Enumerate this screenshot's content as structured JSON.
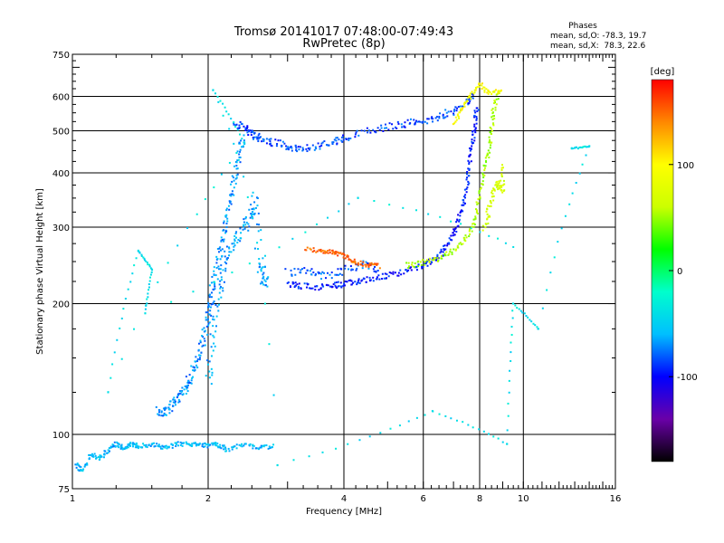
{
  "chart_data": {
    "type": "scatter",
    "title": "Tromsø 20141017 07:48:00-07:49:43",
    "subtitle": "RwPretec (8p)",
    "xlabel": "Frequency [MHz]",
    "ylabel": "Stationary phase Virtual Height [km]",
    "x_scale": "log",
    "y_scale": "log",
    "xlim": [
      1,
      16
    ],
    "ylim": [
      75,
      750
    ],
    "x_ticks": [
      1,
      2,
      4,
      6,
      8,
      10,
      16
    ],
    "y_ticks": [
      75,
      100,
      200,
      300,
      400,
      500,
      600,
      750
    ],
    "x_grid": [
      2,
      4,
      6,
      8,
      10
    ],
    "y_grid": [
      100,
      200,
      300,
      400,
      500,
      600
    ],
    "grid": true,
    "stats": {
      "heading": "Phases",
      "line_o": "mean, sd,O: -78.3, 19.7",
      "line_x": "mean, sd,X:  78.3, 22.6"
    },
    "colorbar": {
      "label": "[deg]",
      "range": [
        -180,
        180
      ],
      "ticks": [
        100,
        0,
        -100
      ],
      "colormap": [
        "#000000",
        "#6a00a8",
        "#0000ff",
        "#00bfff",
        "#00ffcc",
        "#00ff00",
        "#ccff00",
        "#ffff00",
        "#ff8800",
        "#ff0000"
      ]
    },
    "series": [
      {
        "points": [
          [
            1.02,
            85
          ],
          [
            1.05,
            82
          ],
          [
            1.1,
            90
          ],
          [
            1.15,
            88
          ],
          [
            1.2,
            92
          ],
          [
            1.25,
            95
          ],
          [
            1.3,
            93
          ],
          [
            1.35,
            95
          ],
          [
            1.4,
            94
          ],
          [
            1.5,
            95
          ],
          [
            1.6,
            93
          ],
          [
            1.7,
            95
          ],
          [
            1.8,
            95
          ],
          [
            1.9,
            95
          ],
          [
            2.0,
            94
          ],
          [
            2.1,
            95
          ],
          [
            2.2,
            92
          ],
          [
            2.4,
            95
          ],
          [
            2.6,
            93
          ],
          [
            2.8,
            94
          ]
        ],
        "phase": -60,
        "spread": 3
      },
      {
        "points": [
          [
            1.55,
            113
          ],
          [
            1.6,
            112
          ],
          [
            1.65,
            115
          ],
          [
            1.7,
            120
          ],
          [
            1.75,
            125
          ],
          [
            1.8,
            130
          ],
          [
            1.85,
            140
          ],
          [
            1.9,
            150
          ],
          [
            1.95,
            165
          ],
          [
            2.0,
            185
          ],
          [
            2.02,
            200
          ],
          [
            2.05,
            220
          ],
          [
            2.1,
            250
          ],
          [
            2.15,
            280
          ],
          [
            2.2,
            310
          ],
          [
            2.25,
            350
          ],
          [
            2.3,
            400
          ],
          [
            2.35,
            450
          ],
          [
            2.4,
            480
          ]
        ],
        "phase": -70,
        "spread": 6
      },
      {
        "points": [
          [
            2.0,
            130
          ],
          [
            2.05,
            160
          ],
          [
            2.1,
            200
          ],
          [
            2.15,
            230
          ],
          [
            2.2,
            260
          ],
          [
            2.3,
            280
          ],
          [
            2.4,
            300
          ],
          [
            2.5,
            320
          ],
          [
            2.55,
            350
          ],
          [
            2.6,
            250
          ],
          [
            2.65,
            230
          ],
          [
            2.7,
            225
          ]
        ],
        "phase": -65,
        "spread": 8
      },
      {
        "points": [
          [
            2.3,
            520
          ],
          [
            2.4,
            510
          ],
          [
            2.5,
            490
          ],
          [
            2.6,
            480
          ],
          [
            2.8,
            470
          ],
          [
            3.0,
            460
          ],
          [
            3.2,
            455
          ],
          [
            3.5,
            460
          ],
          [
            3.8,
            470
          ],
          [
            4.0,
            480
          ],
          [
            4.5,
            500
          ],
          [
            5.0,
            510
          ],
          [
            5.5,
            520
          ],
          [
            6.0,
            525
          ],
          [
            6.5,
            540
          ],
          [
            7.0,
            555
          ],
          [
            7.5,
            580
          ],
          [
            7.8,
            610
          ]
        ],
        "phase": -85,
        "spread": 5
      },
      {
        "points": [
          [
            3.0,
            222
          ],
          [
            3.2,
            220
          ],
          [
            3.5,
            218
          ],
          [
            3.8,
            220
          ],
          [
            4.0,
            222
          ],
          [
            4.3,
            225
          ],
          [
            4.6,
            228
          ],
          [
            5.0,
            232
          ],
          [
            5.5,
            238
          ],
          [
            6.0,
            245
          ],
          [
            6.3,
            252
          ],
          [
            6.6,
            262
          ],
          [
            6.9,
            280
          ],
          [
            7.1,
            300
          ],
          [
            7.3,
            330
          ],
          [
            7.5,
            370
          ],
          [
            7.6,
            420
          ],
          [
            7.7,
            470
          ],
          [
            7.8,
            520
          ],
          [
            7.9,
            570
          ]
        ],
        "phase": -95,
        "spread": 4
      },
      {
        "points": [
          [
            3.0,
            235
          ],
          [
            3.3,
            240
          ],
          [
            3.6,
            232
          ],
          [
            4.0,
            238
          ],
          [
            4.4,
            245
          ],
          [
            4.8,
            240
          ]
        ],
        "phase": -80,
        "spread": 6
      },
      {
        "points": [
          [
            3.3,
            268
          ],
          [
            3.6,
            264
          ],
          [
            3.8,
            262
          ],
          [
            4.0,
            258
          ],
          [
            4.2,
            250
          ],
          [
            4.5,
            246
          ],
          [
            4.8,
            244
          ]
        ],
        "phase": 150,
        "spread": 3
      },
      {
        "points": [
          [
            5.5,
            245
          ],
          [
            6.0,
            248
          ],
          [
            6.5,
            255
          ],
          [
            7.0,
            265
          ],
          [
            7.5,
            285
          ],
          [
            7.8,
            310
          ],
          [
            8.0,
            350
          ],
          [
            8.2,
            400
          ],
          [
            8.4,
            450
          ],
          [
            8.5,
            500
          ],
          [
            8.6,
            560
          ],
          [
            8.8,
            620
          ]
        ],
        "phase": 55,
        "spread": 4
      },
      {
        "points": [
          [
            8.2,
            300
          ],
          [
            8.4,
            330
          ],
          [
            8.6,
            360
          ],
          [
            8.8,
            380
          ],
          [
            9.0,
            360
          ],
          [
            9.0,
            420
          ]
        ],
        "phase": 70,
        "spread": 5
      },
      {
        "points": [
          [
            7.0,
            520
          ],
          [
            7.3,
            560
          ],
          [
            7.6,
            600
          ],
          [
            8.0,
            640
          ],
          [
            8.4,
            610
          ],
          [
            9.0,
            620
          ]
        ],
        "phase": 95,
        "spread": 3
      },
      {
        "points": [
          [
            12.8,
            455
          ],
          [
            14.0,
            460
          ],
          [
            10.8,
            175
          ],
          [
            9.5,
            200
          ],
          [
            9.2,
            95
          ],
          [
            6.3,
            113
          ],
          [
            2.85,
            85
          ],
          [
            2.05,
            620
          ],
          [
            2.4,
            470
          ],
          [
            1.2,
            125
          ],
          [
            1.4,
            265
          ],
          [
            1.5,
            240
          ],
          [
            1.45,
            190
          ],
          [
            4.3,
            350
          ],
          [
            9.5,
            270
          ]
        ],
        "phase": -40,
        "spread": 1
      }
    ]
  }
}
